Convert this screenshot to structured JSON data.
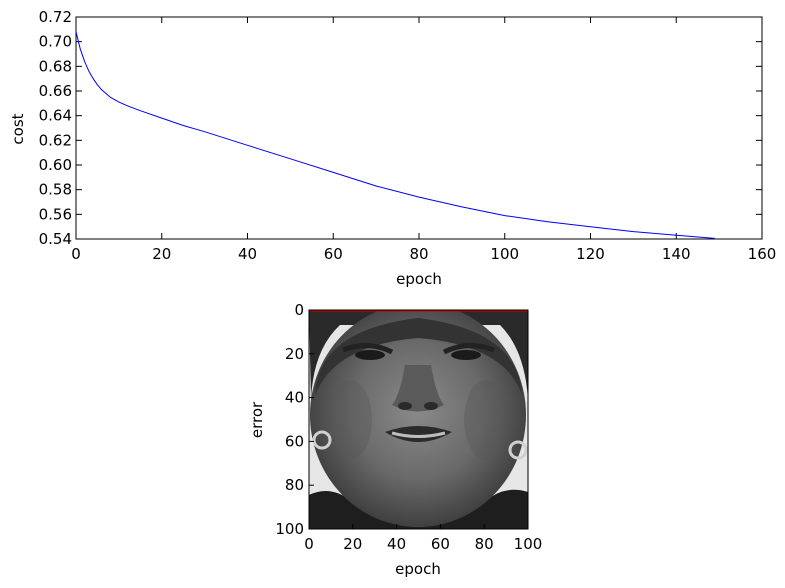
{
  "chart_data": [
    {
      "type": "line",
      "xlabel": "epoch",
      "ylabel": "cost",
      "xlim": [
        0,
        160
      ],
      "ylim": [
        0.54,
        0.72
      ],
      "x_ticks": [
        0,
        20,
        40,
        60,
        80,
        100,
        120,
        140,
        160
      ],
      "y_ticks": [
        0.54,
        0.56,
        0.58,
        0.6,
        0.62,
        0.64,
        0.66,
        0.68,
        0.7,
        0.72
      ],
      "x_tick_labels": [
        "0",
        "20",
        "40",
        "60",
        "80",
        "100",
        "120",
        "140",
        "160"
      ],
      "y_tick_labels": [
        "0.54",
        "0.56",
        "0.58",
        "0.60",
        "0.62",
        "0.64",
        "0.66",
        "0.68",
        "0.70",
        "0.72"
      ],
      "grid": false,
      "series": [
        {
          "color": "#0000ff",
          "x": [
            0,
            1,
            2,
            3,
            4,
            5,
            6,
            7,
            8,
            10,
            12,
            15,
            20,
            25,
            30,
            40,
            50,
            60,
            70,
            80,
            90,
            100,
            110,
            120,
            130,
            140,
            149
          ],
          "y": [
            0.708,
            0.694,
            0.684,
            0.676,
            0.67,
            0.665,
            0.661,
            0.658,
            0.655,
            0.651,
            0.648,
            0.644,
            0.638,
            0.632,
            0.627,
            0.616,
            0.605,
            0.594,
            0.583,
            0.574,
            0.566,
            0.559,
            0.554,
            0.55,
            0.546,
            0.543,
            0.5405
          ]
        }
      ]
    },
    {
      "type": "image",
      "xlabel": "epoch",
      "ylabel": "error",
      "xlim": [
        0,
        100
      ],
      "ylim": [
        100,
        0
      ],
      "x_ticks": [
        0,
        20,
        40,
        60,
        80,
        100
      ],
      "y_ticks": [
        0,
        20,
        40,
        60,
        80,
        100
      ],
      "x_tick_labels": [
        "0",
        "20",
        "40",
        "60",
        "80",
        "100"
      ],
      "y_tick_labels": [
        "0",
        "20",
        "40",
        "60",
        "80",
        "100"
      ],
      "image_content": "grayscale portrait of a face",
      "top_line_color": "#cc0000"
    }
  ]
}
